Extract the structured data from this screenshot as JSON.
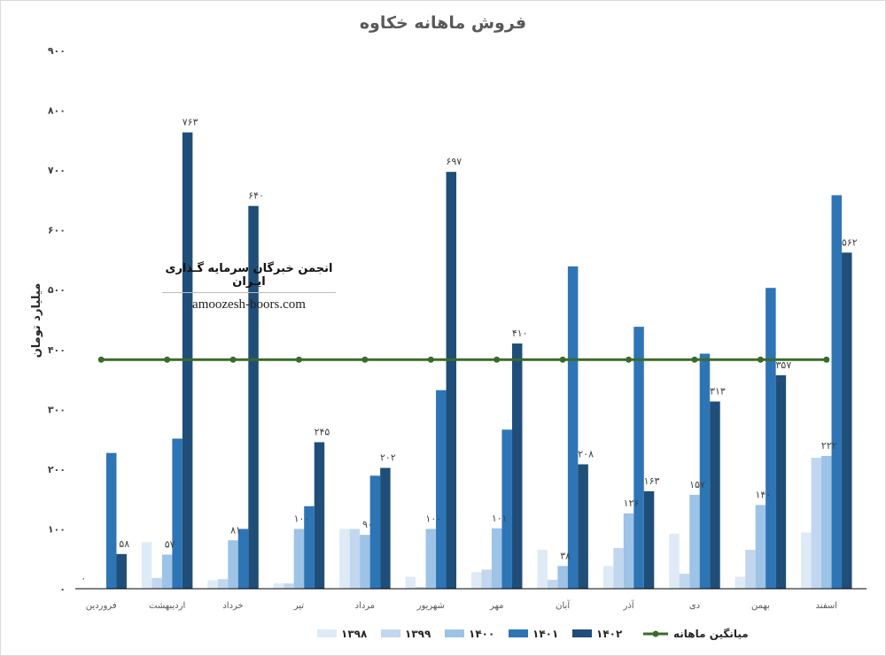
{
  "colors": {
    "1398": "#deebf7",
    "1399": "#c2d7ef",
    "1400": "#9dc3e6",
    "1401": "#2e75b6",
    "1402": "#1f4e79",
    "average": "#3b6b2a",
    "axis": "#000000"
  },
  "watermark": {
    "title": "انجمن خبرگان سرمایه گـذاری ایـران",
    "site": "amoozesh-boors.com"
  },
  "chart_data": {
    "type": "bar",
    "title": "فروش ماهانه خکاوه",
    "xlabel": "",
    "ylabel": "میلیارد تومان",
    "ylim": [
      0,
      900
    ],
    "yticks": [
      0,
      100,
      200,
      300,
      400,
      500,
      600,
      700,
      800,
      900
    ],
    "ytick_labels": [
      "۰",
      "۱۰۰",
      "۲۰۰",
      "۳۰۰",
      "۴۰۰",
      "۵۰۰",
      "۶۰۰",
      "۷۰۰",
      "۸۰۰",
      "۹۰۰"
    ],
    "grid": false,
    "legend_position": "bottom",
    "categories": [
      "فروردین",
      "اردیبهشت",
      "خرداد",
      "تیر",
      "مرداد",
      "شهریور",
      "مهر",
      "آبان",
      "آذر",
      "دی",
      "بهمن",
      "اسفند"
    ],
    "series": [
      {
        "name": "۱۳۹۸",
        "key": "1398",
        "values": [
          0,
          78,
          14,
          9,
          100,
          20,
          28,
          65,
          38,
          92,
          20,
          94
        ]
      },
      {
        "name": "۱۳۹۹",
        "key": "1399",
        "values": [
          0,
          18,
          16,
          9,
          100,
          3,
          32,
          15,
          68,
          25,
          65,
          219
        ]
      },
      {
        "name": "۱۴۰۰",
        "key": "1400",
        "values": [
          0,
          57,
          81,
          100,
          90,
          100,
          101,
          38,
          126,
          157,
          140,
          222
        ]
      },
      {
        "name": "۱۴۰۱",
        "key": "1401",
        "values": [
          227,
          251,
          100,
          138,
          189,
          332,
          266,
          539,
          438,
          393,
          503,
          658
        ]
      },
      {
        "name": "۱۴۰۲",
        "key": "1402",
        "values": [
          58,
          763,
          640,
          245,
          202,
          697,
          410,
          208,
          163,
          313,
          357,
          562
        ]
      }
    ],
    "data_labels": {
      "1400": [
        "",
        "۵۷",
        "۸۱",
        "۱۰۰",
        "۹۰",
        "۱۰۰",
        "۱۰۱",
        "۳۸",
        "۱۲۶",
        "۱۵۷",
        "۱۴۰",
        "۲۲۲"
      ],
      "1402": [
        "۵۸",
        "۷۶۳",
        "۶۴۰",
        "۲۴۵",
        "۲۰۲",
        "۶۹۷",
        "۴۱۰",
        "۲۰۸",
        "۱۶۳",
        "۳۱۳",
        "۳۵۷",
        "۵۶۲"
      ],
      "1398": [
        "۰",
        "",
        "",
        "",
        "",
        "",
        "",
        "",
        "",
        "",
        "",
        ""
      ]
    },
    "average": {
      "name": "میانگین ماهانه",
      "value": 383
    }
  }
}
